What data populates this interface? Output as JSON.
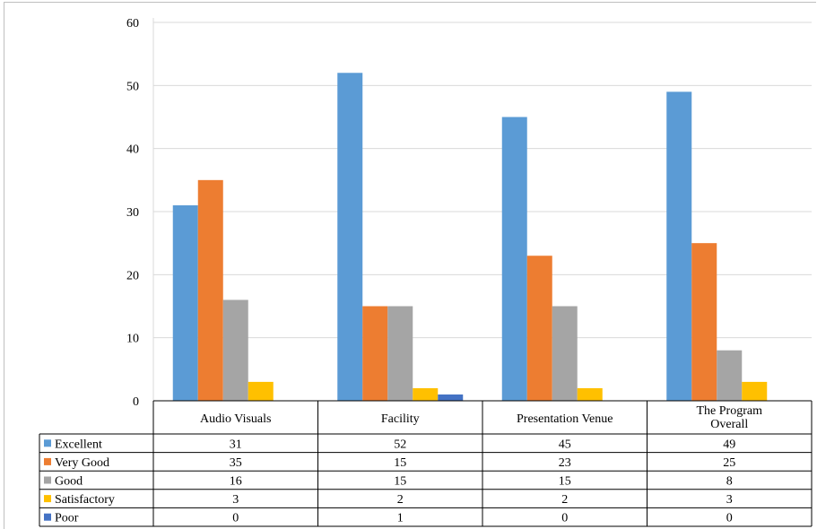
{
  "chart_data": {
    "type": "bar",
    "title": "",
    "xlabel": "",
    "ylabel": "",
    "ylim": [
      0,
      60
    ],
    "yticks": [
      0,
      10,
      20,
      30,
      40,
      50,
      60
    ],
    "grid": true,
    "legend": "data-table-left",
    "categories": [
      [
        "Audio Visuals"
      ],
      [
        "Facility"
      ],
      [
        "Presentation Venue"
      ],
      [
        "The Program",
        "Overall"
      ]
    ],
    "series": [
      {
        "name": "Excellent",
        "color": "#5b9bd5",
        "values": [
          31,
          52,
          45,
          49
        ]
      },
      {
        "name": "Very Good",
        "color": "#ed7d31",
        "values": [
          35,
          15,
          23,
          25
        ]
      },
      {
        "name": "Good",
        "color": "#a5a5a5",
        "values": [
          16,
          15,
          15,
          8
        ]
      },
      {
        "name": "Satisfactory",
        "color": "#ffc000",
        "values": [
          3,
          2,
          2,
          3
        ]
      },
      {
        "name": "Poor",
        "color": "#4472c4",
        "values": [
          0,
          1,
          0,
          0
        ]
      }
    ]
  }
}
